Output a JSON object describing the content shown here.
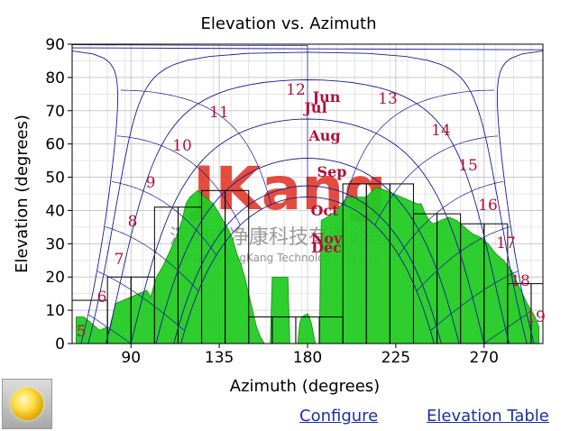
{
  "chart_data": {
    "type": "area",
    "title": "Elevation vs. Azimuth",
    "xlabel": "Azimuth (degrees)",
    "ylabel": "Elevation (degrees)",
    "xlim": [
      60,
      300
    ],
    "ylim": [
      0,
      90
    ],
    "xticks": [
      90,
      135,
      180,
      225,
      270
    ],
    "yticks": [
      0,
      10,
      20,
      30,
      40,
      50,
      60,
      70,
      80,
      90
    ],
    "grid": true,
    "horizon_profile": {
      "x": [
        62,
        66,
        70,
        74,
        78,
        79,
        82,
        86,
        90,
        94,
        98,
        100,
        103,
        106,
        110,
        113,
        116,
        118,
        120,
        122,
        124,
        126,
        128,
        130,
        132,
        134,
        136,
        138,
        140,
        142,
        144,
        146,
        148,
        150,
        152,
        154,
        156,
        158,
        160,
        161,
        162,
        170,
        171,
        172,
        175,
        176,
        177,
        180,
        181,
        182,
        184,
        186,
        187,
        190,
        195,
        200,
        205,
        210,
        215,
        220,
        224,
        228,
        232,
        236,
        238,
        240,
        242,
        244,
        248,
        252,
        256,
        260,
        264,
        268,
        272,
        276,
        280,
        284,
        288,
        292,
        296,
        298
      ],
      "y": [
        8,
        8,
        6,
        4,
        5,
        3,
        12,
        13,
        14,
        15,
        16,
        14,
        20,
        23,
        28,
        32,
        37,
        42,
        44,
        45,
        46,
        45,
        44,
        43,
        42,
        40,
        38,
        36,
        34,
        31,
        27,
        24,
        20,
        15,
        10,
        5,
        2,
        0,
        0,
        0,
        20,
        20,
        0,
        0,
        0,
        6,
        8,
        9,
        8,
        6,
        0,
        0,
        37,
        38,
        40,
        44,
        44,
        44,
        47,
        46,
        45,
        44,
        43,
        42,
        42,
        39,
        37,
        36,
        37,
        38,
        37,
        35,
        33,
        32,
        30,
        27,
        25,
        22,
        17,
        12,
        8,
        5
      ]
    },
    "bar_steps": {
      "x": [
        [
          60,
          78
        ],
        [
          78,
          90
        ],
        [
          90,
          102
        ],
        [
          102,
          114
        ],
        [
          114,
          126
        ],
        [
          126,
          138
        ],
        [
          138,
          150
        ],
        [
          150,
          162
        ],
        [
          162,
          174
        ],
        [
          174,
          186
        ],
        [
          186,
          198
        ],
        [
          198,
          210
        ],
        [
          210,
          222
        ],
        [
          222,
          234
        ],
        [
          234,
          246
        ],
        [
          246,
          258
        ],
        [
          258,
          270
        ],
        [
          270,
          282
        ],
        [
          282,
          294
        ],
        [
          294,
          300
        ]
      ],
      "y": [
        13,
        20,
        20,
        41,
        41,
        46,
        46,
        8,
        8,
        8,
        8,
        48,
        48,
        48,
        39,
        39,
        36,
        36,
        18,
        18
      ]
    },
    "hour_labels": {
      "values": [
        "5",
        "6",
        "7",
        "8",
        "9",
        "10",
        "11",
        "12",
        "13",
        "14",
        "15",
        "16",
        "17",
        "18",
        "19"
      ]
    },
    "month_labels": {
      "values": [
        "Jun",
        "Jul",
        "Aug",
        "Sep",
        "Oct",
        "Nov",
        "Dec"
      ]
    }
  },
  "watermark": {
    "logo_text": "JKang",
    "cn_text": "深圳市净康科技有限公司",
    "en_text": "Shenzhen JingKang Technology Co.LTD"
  },
  "links": {
    "configure": "Configure",
    "elevation_table": "Elevation Table"
  },
  "colors": {
    "fill": "#22cc22",
    "grid": "#c8c8c8",
    "path": "#1a1a99",
    "label": "#b0103a",
    "link": "#1a2fa8"
  }
}
